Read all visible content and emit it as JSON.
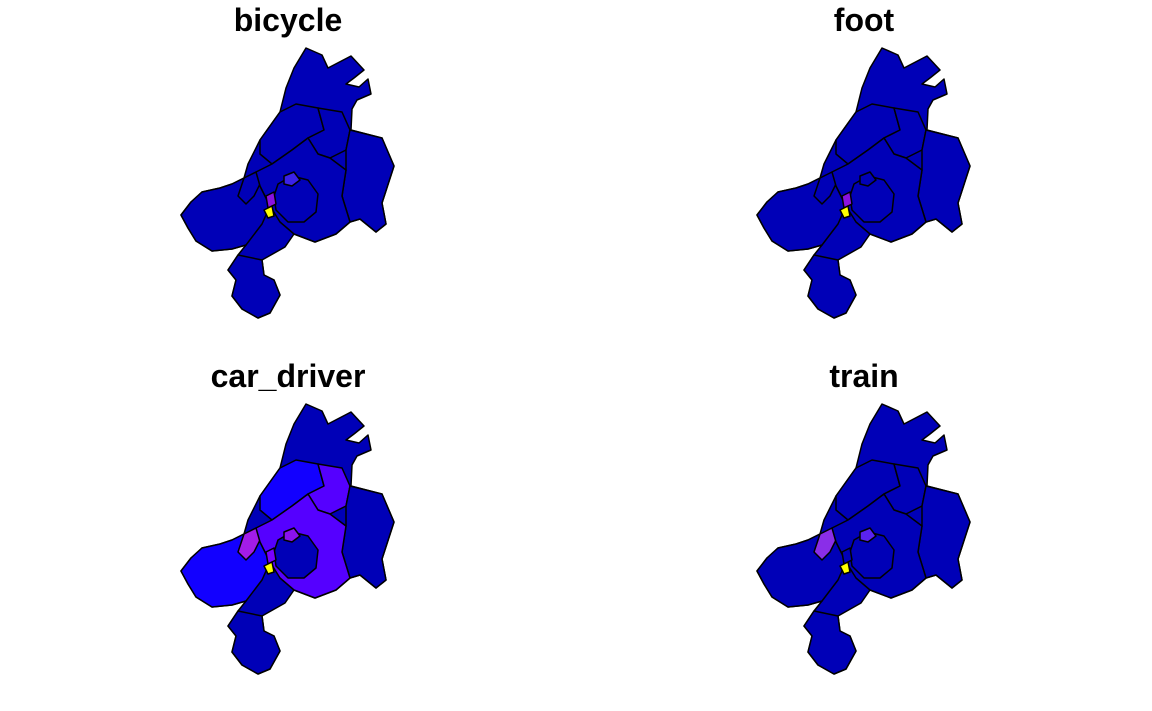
{
  "panels": [
    {
      "title": "bicycle",
      "colors": {
        "outer": "#0000b7",
        "ring": "#0000b7",
        "northwest": "#0000b7",
        "north": "#0000b7",
        "east": "#0000b7",
        "west": "#0000b7",
        "south": "#0000b7",
        "west_strip": "#0000b7",
        "center": "#0000b7",
        "center_hot": "#ffff00",
        "accent_a": "#3b22e8",
        "accent_b": "#8a12e0"
      }
    },
    {
      "title": "foot",
      "colors": {
        "outer": "#0000b7",
        "ring": "#0000b7",
        "northwest": "#0000b7",
        "north": "#0000b7",
        "east": "#0000b7",
        "west": "#0000b7",
        "south": "#0000b7",
        "west_strip": "#0000b7",
        "center": "#0000b7",
        "center_hot": "#ffff00",
        "accent_a": "#0000b7",
        "accent_b": "#8a12e0"
      }
    },
    {
      "title": "car_driver",
      "colors": {
        "outer": "#0000b7",
        "ring": "#5500ff",
        "northwest": "#1200ff",
        "north": "#5500ff",
        "east": "#0000b7",
        "west": "#1200ff",
        "south": "#0000b7",
        "west_strip": "#a31ce8",
        "center": "#0000b7",
        "center_hot": "#ffff00",
        "accent_a": "#8a12ee",
        "accent_b": "#7a00ff"
      }
    },
    {
      "title": "train",
      "colors": {
        "outer": "#0000b7",
        "ring": "#0000b7",
        "northwest": "#0000b7",
        "north": "#0000b7",
        "east": "#0000b7",
        "west": "#0000b7",
        "south": "#0000b7",
        "west_strip": "#8a2ee8",
        "center": "#0000b7",
        "center_hot": "#ffff00",
        "accent_a": "#5a22f0",
        "accent_b": "#0000b7"
      }
    }
  ]
}
